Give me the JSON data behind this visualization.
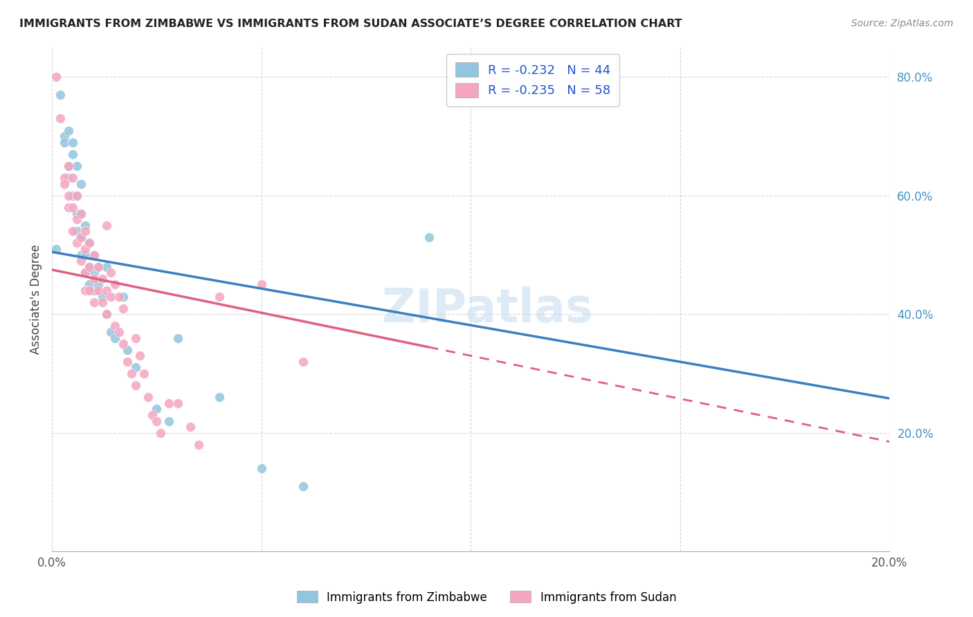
{
  "title": "IMMIGRANTS FROM ZIMBABWE VS IMMIGRANTS FROM SUDAN ASSOCIATE’S DEGREE CORRELATION CHART",
  "source": "Source: ZipAtlas.com",
  "ylabel": "Associate's Degree",
  "yaxis_right_labels": [
    "20.0%",
    "40.0%",
    "60.0%",
    "80.0%"
  ],
  "legend_zimbabwe": "R = -0.232   N = 44",
  "legend_sudan": "R = -0.235   N = 58",
  "watermark": "ZIPatlas",
  "color_zimbabwe": "#92c5de",
  "color_sudan": "#f4a6c0",
  "color_line_zimbabwe": "#3a7fc1",
  "color_line_sudan": "#e0607e",
  "xlim": [
    0.0,
    0.2
  ],
  "ylim": [
    0.0,
    0.85
  ],
  "line_zim_x0": 0.0,
  "line_zim_y0": 0.505,
  "line_zim_x1": 0.2,
  "line_zim_y1": 0.258,
  "line_sud_x0": 0.0,
  "line_sud_y0": 0.475,
  "line_sud_x1": 0.2,
  "line_sud_y1": 0.185,
  "line_sud_solid_end": 0.09,
  "zimbabwe_points": [
    [
      0.001,
      0.51
    ],
    [
      0.002,
      0.77
    ],
    [
      0.003,
      0.7
    ],
    [
      0.003,
      0.69
    ],
    [
      0.004,
      0.71
    ],
    [
      0.004,
      0.65
    ],
    [
      0.004,
      0.63
    ],
    [
      0.005,
      0.69
    ],
    [
      0.005,
      0.67
    ],
    [
      0.005,
      0.6
    ],
    [
      0.006,
      0.65
    ],
    [
      0.006,
      0.6
    ],
    [
      0.006,
      0.57
    ],
    [
      0.006,
      0.54
    ],
    [
      0.007,
      0.62
    ],
    [
      0.007,
      0.57
    ],
    [
      0.007,
      0.53
    ],
    [
      0.007,
      0.5
    ],
    [
      0.008,
      0.55
    ],
    [
      0.008,
      0.5
    ],
    [
      0.008,
      0.47
    ],
    [
      0.009,
      0.52
    ],
    [
      0.009,
      0.48
    ],
    [
      0.009,
      0.45
    ],
    [
      0.01,
      0.5
    ],
    [
      0.01,
      0.47
    ],
    [
      0.01,
      0.44
    ],
    [
      0.011,
      0.48
    ],
    [
      0.011,
      0.45
    ],
    [
      0.012,
      0.43
    ],
    [
      0.013,
      0.48
    ],
    [
      0.013,
      0.4
    ],
    [
      0.014,
      0.37
    ],
    [
      0.015,
      0.36
    ],
    [
      0.017,
      0.43
    ],
    [
      0.018,
      0.34
    ],
    [
      0.02,
      0.31
    ],
    [
      0.025,
      0.24
    ],
    [
      0.028,
      0.22
    ],
    [
      0.03,
      0.36
    ],
    [
      0.04,
      0.26
    ],
    [
      0.05,
      0.14
    ],
    [
      0.06,
      0.11
    ],
    [
      0.09,
      0.53
    ]
  ],
  "sudan_points": [
    [
      0.001,
      0.8
    ],
    [
      0.002,
      0.73
    ],
    [
      0.003,
      0.63
    ],
    [
      0.003,
      0.62
    ],
    [
      0.004,
      0.65
    ],
    [
      0.004,
      0.6
    ],
    [
      0.004,
      0.58
    ],
    [
      0.005,
      0.63
    ],
    [
      0.005,
      0.58
    ],
    [
      0.005,
      0.54
    ],
    [
      0.006,
      0.6
    ],
    [
      0.006,
      0.56
    ],
    [
      0.006,
      0.52
    ],
    [
      0.007,
      0.57
    ],
    [
      0.007,
      0.53
    ],
    [
      0.007,
      0.49
    ],
    [
      0.008,
      0.54
    ],
    [
      0.008,
      0.51
    ],
    [
      0.008,
      0.47
    ],
    [
      0.008,
      0.44
    ],
    [
      0.009,
      0.52
    ],
    [
      0.009,
      0.48
    ],
    [
      0.009,
      0.44
    ],
    [
      0.01,
      0.5
    ],
    [
      0.01,
      0.46
    ],
    [
      0.01,
      0.42
    ],
    [
      0.011,
      0.48
    ],
    [
      0.011,
      0.44
    ],
    [
      0.012,
      0.46
    ],
    [
      0.012,
      0.42
    ],
    [
      0.013,
      0.55
    ],
    [
      0.013,
      0.44
    ],
    [
      0.013,
      0.4
    ],
    [
      0.014,
      0.47
    ],
    [
      0.014,
      0.43
    ],
    [
      0.015,
      0.45
    ],
    [
      0.015,
      0.38
    ],
    [
      0.016,
      0.43
    ],
    [
      0.016,
      0.37
    ],
    [
      0.017,
      0.41
    ],
    [
      0.017,
      0.35
    ],
    [
      0.018,
      0.32
    ],
    [
      0.019,
      0.3
    ],
    [
      0.02,
      0.36
    ],
    [
      0.02,
      0.28
    ],
    [
      0.021,
      0.33
    ],
    [
      0.022,
      0.3
    ],
    [
      0.023,
      0.26
    ],
    [
      0.024,
      0.23
    ],
    [
      0.025,
      0.22
    ],
    [
      0.026,
      0.2
    ],
    [
      0.028,
      0.25
    ],
    [
      0.03,
      0.25
    ],
    [
      0.033,
      0.21
    ],
    [
      0.035,
      0.18
    ],
    [
      0.04,
      0.43
    ],
    [
      0.05,
      0.45
    ],
    [
      0.06,
      0.32
    ]
  ]
}
